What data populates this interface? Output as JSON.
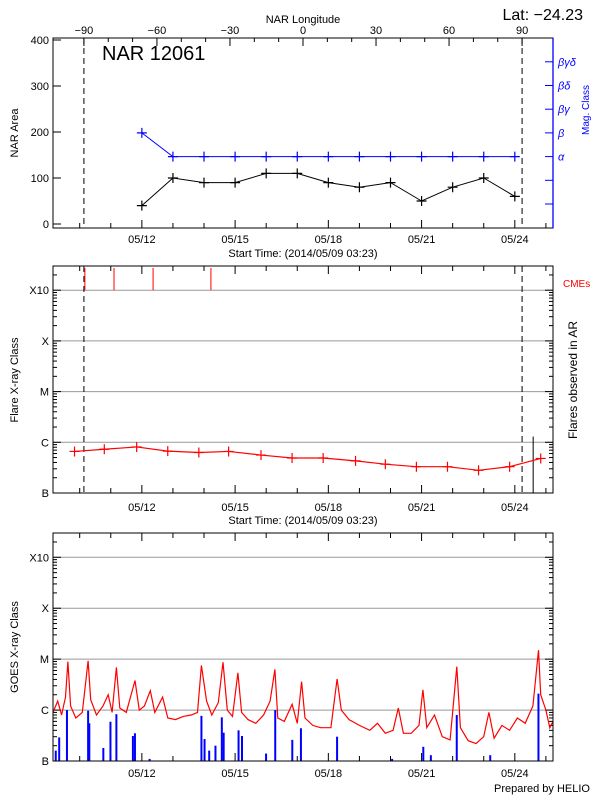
{
  "header": {
    "lat_label": "Lat: −24.23"
  },
  "footer": {
    "credit": "Prepared by HELIO"
  },
  "colors": {
    "area": "#000000",
    "mag_class": "#0000ff",
    "flare": "#ff0000",
    "cme": "#ff0000",
    "goes": "#ff0000",
    "goes_events": "#0000ff",
    "grid": "#999999"
  },
  "chart_data": [
    {
      "type": "line",
      "panel": "nar",
      "title": "NAR 12061",
      "xlabel": "Start Time: (2014/05/09 03:23)",
      "ylabel": "NAR Area",
      "ylabel_right": "Mag. Class",
      "top_axis_label": "NAR Longitude",
      "top_axis_ticks": [
        "-90",
        "-60",
        "-30",
        "0",
        "30",
        "60",
        "90"
      ],
      "top_axis_range": [
        -102.7,
        102.7
      ],
      "longitude_markers": [
        -90,
        90
      ],
      "xlim": [
        "05/09 03:23",
        "05/25 05:30"
      ],
      "x_tick_labels": [
        "05/12",
        "05/15",
        "05/18",
        "05/21",
        "05/24"
      ],
      "ylim": [
        0,
        400
      ],
      "y_ticks": [
        "0",
        "100",
        "200",
        "300",
        "400"
      ],
      "mag_class_levels": [
        "",
        "",
        "α",
        "β",
        "βγ",
        "βδ",
        "βγδ"
      ],
      "dates": [
        "05/12 00:00",
        "05/13 00:00",
        "05/14 00:00",
        "05/15 00:00",
        "05/16 00:00",
        "05/17 00:00",
        "05/18 00:00",
        "05/19 00:00",
        "05/20 00:00",
        "05/21 00:00",
        "05/22 00:00",
        "05/23 00:00",
        "05/24 00:00"
      ],
      "series": [
        {
          "values": [
            40,
            100,
            90,
            90,
            110,
            110,
            90,
            80,
            90,
            50,
            80,
            100,
            60
          ]
        },
        {
          "values": [
            "β",
            "α",
            "α",
            "α",
            "α",
            "α",
            "α",
            "α",
            "α",
            "α",
            "α",
            "α",
            "α"
          ]
        }
      ]
    },
    {
      "type": "line",
      "panel": "flares",
      "xlabel": "Start Time: (2014/05/09 03:23)",
      "ylabel": "Flare X-ray Class",
      "ylabel_right": "Flares observed in AR",
      "cme_label": "CMEs",
      "y_scale": "log",
      "ylim": [
        1e-07,
        0.003
      ],
      "class_levels": [
        {
          "label": "B",
          "flux": 1e-07
        },
        {
          "label": "C",
          "flux": 1e-06
        },
        {
          "label": "M",
          "flux": 1e-05
        },
        {
          "label": "X",
          "flux": 0.0001
        },
        {
          "label": "X10",
          "flux": 0.001
        }
      ],
      "grid": true,
      "x_tick_labels": [
        "05/12",
        "05/15",
        "05/18",
        "05/21",
        "05/24"
      ],
      "background": {
        "times": [
          "05/09 20:00",
          "05/10 19:00",
          "05/11 20:00",
          "05/12 20:00",
          "05/13 20:00",
          "05/14 19:00",
          "05/15 20:00",
          "05/16 20:00",
          "05/17 20:00",
          "05/18 21:00",
          "05/19 20:00",
          "05/20 20:00",
          "05/21 20:00",
          "05/22 20:00",
          "05/23 20:00",
          "05/24 20:00"
        ],
        "flux": [
          6.6e-07,
          7.3e-07,
          8.1e-07,
          6.7e-07,
          6.3e-07,
          6.6e-07,
          5.6e-07,
          4.9e-07,
          4.9e-07,
          4.3e-07,
          3.7e-07,
          3.3e-07,
          3.3e-07,
          2.8e-07,
          3.3e-07,
          4.8e-07
        ]
      },
      "cmes": [
        "05/10 04:00",
        "05/11 02:30",
        "05/12 08:40",
        "05/14 05:20"
      ],
      "flares_observed": [
        {
          "time": "05/24 14:10",
          "flux": 1.3e-06
        }
      ]
    },
    {
      "type": "line",
      "panel": "goes",
      "ylabel": "GOES X-ray Class",
      "y_scale": "log",
      "ylim": [
        1e-07,
        0.003
      ],
      "class_levels": [
        {
          "label": "B",
          "flux": 1e-07
        },
        {
          "label": "C",
          "flux": 1e-06
        },
        {
          "label": "M",
          "flux": 1e-05
        },
        {
          "label": "X",
          "flux": 0.0001
        },
        {
          "label": "X10",
          "flux": 0.001
        }
      ],
      "grid": true,
      "x_tick_labels": [
        "05/12",
        "05/15",
        "05/18",
        "05/21",
        "05/24"
      ],
      "goes_flux": [
        [
          "05/09 03:23",
          9e-07
        ],
        [
          "05/09 07:00",
          1.5e-06
        ],
        [
          "05/09 10:00",
          8e-07
        ],
        [
          "05/09 13:00",
          1.8e-06
        ],
        [
          "05/09 14:55",
          8.9e-06
        ],
        [
          "05/09 17:00",
          1.2e-06
        ],
        [
          "05/09 21:00",
          7e-07
        ],
        [
          "05/10 02:00",
          9e-07
        ],
        [
          "05/10 06:30",
          9.3e-06
        ],
        [
          "05/10 08:30",
          1.6e-06
        ],
        [
          "05/10 13:00",
          8e-07
        ],
        [
          "05/10 18:00",
          1.2e-06
        ],
        [
          "05/10 22:00",
          2e-06
        ],
        [
          "05/11 01:00",
          9e-07
        ],
        [
          "05/11 04:20",
          6.9e-06
        ],
        [
          "05/11 07:00",
          1.1e-06
        ],
        [
          "05/11 12:00",
          9e-07
        ],
        [
          "05/11 18:40",
          3.8e-06
        ],
        [
          "05/11 22:00",
          1e-06
        ],
        [
          "05/12 02:00",
          1.2e-06
        ],
        [
          "05/12 06:30",
          2.4e-06
        ],
        [
          "05/12 10:00",
          9e-07
        ],
        [
          "05/12 16:00",
          1.8e-06
        ],
        [
          "05/12 20:00",
          7e-07
        ],
        [
          "05/13 02:00",
          6.5e-07
        ],
        [
          "05/13 08:00",
          7.5e-07
        ],
        [
          "05/13 14:00",
          8e-07
        ],
        [
          "05/13 19:00",
          9e-07
        ],
        [
          "05/13 22:00",
          7.5e-06
        ],
        [
          "05/14 02:00",
          1.5e-06
        ],
        [
          "05/14 06:00",
          8e-07
        ],
        [
          "05/14 11:00",
          1.4e-06
        ],
        [
          "05/14 14:40",
          8.7e-06
        ],
        [
          "05/14 18:00",
          1e-06
        ],
        [
          "05/14 22:00",
          7.5e-07
        ],
        [
          "05/15 02:10",
          5.4e-06
        ],
        [
          "05/15 05:00",
          9e-07
        ],
        [
          "05/15 10:00",
          6.5e-07
        ],
        [
          "05/15 16:00",
          5.5e-07
        ],
        [
          "05/15 22:00",
          8e-07
        ],
        [
          "05/16 03:00",
          1.5e-06
        ],
        [
          "05/16 06:45",
          6.3e-06
        ],
        [
          "05/16 09:00",
          7e-07
        ],
        [
          "05/16 14:00",
          6e-07
        ],
        [
          "05/16 20:00",
          1.3e-06
        ],
        [
          "05/17 00:00",
          5.5e-07
        ],
        [
          "05/17 03:20",
          3.6e-06
        ],
        [
          "05/17 06:00",
          7e-07
        ],
        [
          "05/17 12:00",
          5e-07
        ],
        [
          "05/17 18:00",
          4.5e-07
        ],
        [
          "05/18 02:00",
          4.5e-07
        ],
        [
          "05/18 06:45",
          4.1e-06
        ],
        [
          "05/18 10:00",
          1e-06
        ],
        [
          "05/18 16:00",
          6.5e-07
        ],
        [
          "05/19 00:00",
          5e-07
        ],
        [
          "05/19 08:00",
          4e-07
        ],
        [
          "05/19 14:00",
          5.5e-07
        ],
        [
          "05/19 20:00",
          3.5e-07
        ],
        [
          "05/20 02:00",
          4e-07
        ],
        [
          "05/20 06:00",
          1.1e-06
        ],
        [
          "05/20 10:00",
          3.5e-07
        ],
        [
          "05/20 16:00",
          3.5e-07
        ],
        [
          "05/20 22:00",
          5e-07
        ],
        [
          "05/21 01:00",
          2.5e-06
        ],
        [
          "05/21 04:00",
          4.5e-07
        ],
        [
          "05/21 10:00",
          8e-07
        ],
        [
          "05/21 16:00",
          3e-07
        ],
        [
          "05/21 22:00",
          2.6e-07
        ],
        [
          "05/22 03:10",
          7.1e-06
        ],
        [
          "05/22 06:00",
          4.5e-07
        ],
        [
          "05/22 12:00",
          2.5e-07
        ],
        [
          "05/22 18:00",
          2.2e-07
        ],
        [
          "05/23 00:00",
          3e-07
        ],
        [
          "05/23 04:00",
          9e-07
        ],
        [
          "05/23 08:00",
          2.8e-07
        ],
        [
          "05/23 14:00",
          5e-07
        ],
        [
          "05/23 20:00",
          4e-07
        ],
        [
          "05/24 02:00",
          7e-07
        ],
        [
          "05/24 08:00",
          5.5e-07
        ],
        [
          "05/24 14:00",
          1.2e-06
        ],
        [
          "05/24 18:15",
          1.5e-05
        ],
        [
          "05/24 20:00",
          2e-06
        ],
        [
          "05/25 00:00",
          1e-06
        ],
        [
          "05/25 03:00",
          4.5e-07
        ],
        [
          "05/25 05:30",
          6e-07
        ]
      ],
      "flare_events": [
        [
          "05/09 05:30",
          1.6e-07
        ],
        [
          "05/09 08:10",
          2.9e-07
        ],
        [
          "05/09 14:10",
          1e-06
        ],
        [
          "05/10 06:30",
          9.7e-07
        ],
        [
          "05/10 07:25",
          5.5e-07
        ],
        [
          "05/10 18:15",
          1.8e-07
        ],
        [
          "05/10 23:45",
          5.9e-07
        ],
        [
          "05/11 04:20",
          8.3e-07
        ],
        [
          "05/11 17:05",
          3.1e-07
        ],
        [
          "05/11 18:40",
          3.5e-07
        ],
        [
          "05/12 06:00",
          1.1e-07
        ],
        [
          "05/13 22:00",
          7.7e-07
        ],
        [
          "05/14 00:25",
          2.7e-07
        ],
        [
          "05/14 04:00",
          1.6e-07
        ],
        [
          "05/14 08:50",
          2e-07
        ],
        [
          "05/14 13:45",
          7.2e-07
        ],
        [
          "05/14 15:10",
          3.6e-07
        ],
        [
          "05/15 02:40",
          4e-07
        ],
        [
          "05/15 05:20",
          3.1e-07
        ],
        [
          "05/15 23:55",
          1.4e-07
        ],
        [
          "05/16 07:00",
          1e-06
        ],
        [
          "05/16 20:10",
          2.6e-07
        ],
        [
          "05/17 02:50",
          4.4e-07
        ],
        [
          "05/18 06:45",
          3e-07
        ],
        [
          "05/20 01:15",
          1.1e-07
        ],
        [
          "05/21 01:20",
          1.9e-07
        ],
        [
          "05/21 07:10",
          1.3e-07
        ],
        [
          "05/22 03:10",
          8e-07
        ],
        [
          "05/23 05:00",
          1.3e-07
        ],
        [
          "05/24 18:15",
          2.1e-06
        ]
      ]
    }
  ]
}
